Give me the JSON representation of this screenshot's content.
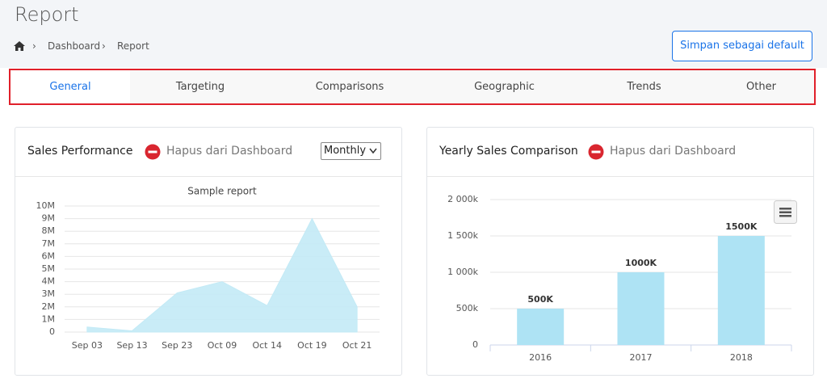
{
  "header": {
    "title": "Report",
    "breadcrumb": [
      "Dashboard",
      "Report"
    ],
    "button": "Simpan sebagai default"
  },
  "tabs": [
    "General",
    "Targeting",
    "Comparisons",
    "Geographic",
    "Trends",
    "Other"
  ],
  "panels": [
    {
      "title": "Sales Performance",
      "remove": "Hapus dari Dashboard",
      "select": "Monthly"
    },
    {
      "title": "Yearly Sales Comparison",
      "remove": "Hapus dari Dashboard"
    }
  ],
  "chart_data": [
    {
      "type": "area",
      "title": "Sample report",
      "color": "#c3eaf6",
      "categories": [
        "Sep 03",
        "Sep 13",
        "Sep 23",
        "Oct 09",
        "Oct 14",
        "Oct 19",
        "Oct 21"
      ],
      "values": [
        400000,
        100000,
        3100000,
        4000000,
        2100000,
        9000000,
        2000000
      ],
      "ylim": [
        0,
        10000000
      ],
      "yticks": [
        0,
        {
          "value": 1000000,
          "label": "1M"
        },
        {
          "value": 2000000,
          "label": "2M"
        },
        {
          "value": 3000000,
          "label": "3M"
        },
        {
          "value": 4000000,
          "label": "4M"
        },
        {
          "value": 5000000,
          "label": "5M"
        },
        {
          "value": 6000000,
          "label": "6M"
        },
        {
          "value": 7000000,
          "label": "7M"
        },
        {
          "value": 8000000,
          "label": "8M"
        },
        {
          "value": 9000000,
          "label": "9M"
        },
        {
          "value": 10000000,
          "label": "10M"
        }
      ],
      "grid": true
    },
    {
      "type": "bar",
      "color": "#aee3f4",
      "categories": [
        "2016",
        "2017",
        "2018"
      ],
      "values": [
        500,
        1000,
        1500
      ],
      "value_labels": [
        "500K",
        "1000K",
        "1500K"
      ],
      "ylim": [
        0,
        2000
      ],
      "yticks": [
        0,
        {
          "value": 500,
          "label": "500k"
        },
        {
          "value": 1000,
          "label": "1 000k"
        },
        {
          "value": 1500,
          "label": "1 500k"
        },
        {
          "value": 2000,
          "label": "2 000k"
        }
      ],
      "grid": true
    }
  ]
}
